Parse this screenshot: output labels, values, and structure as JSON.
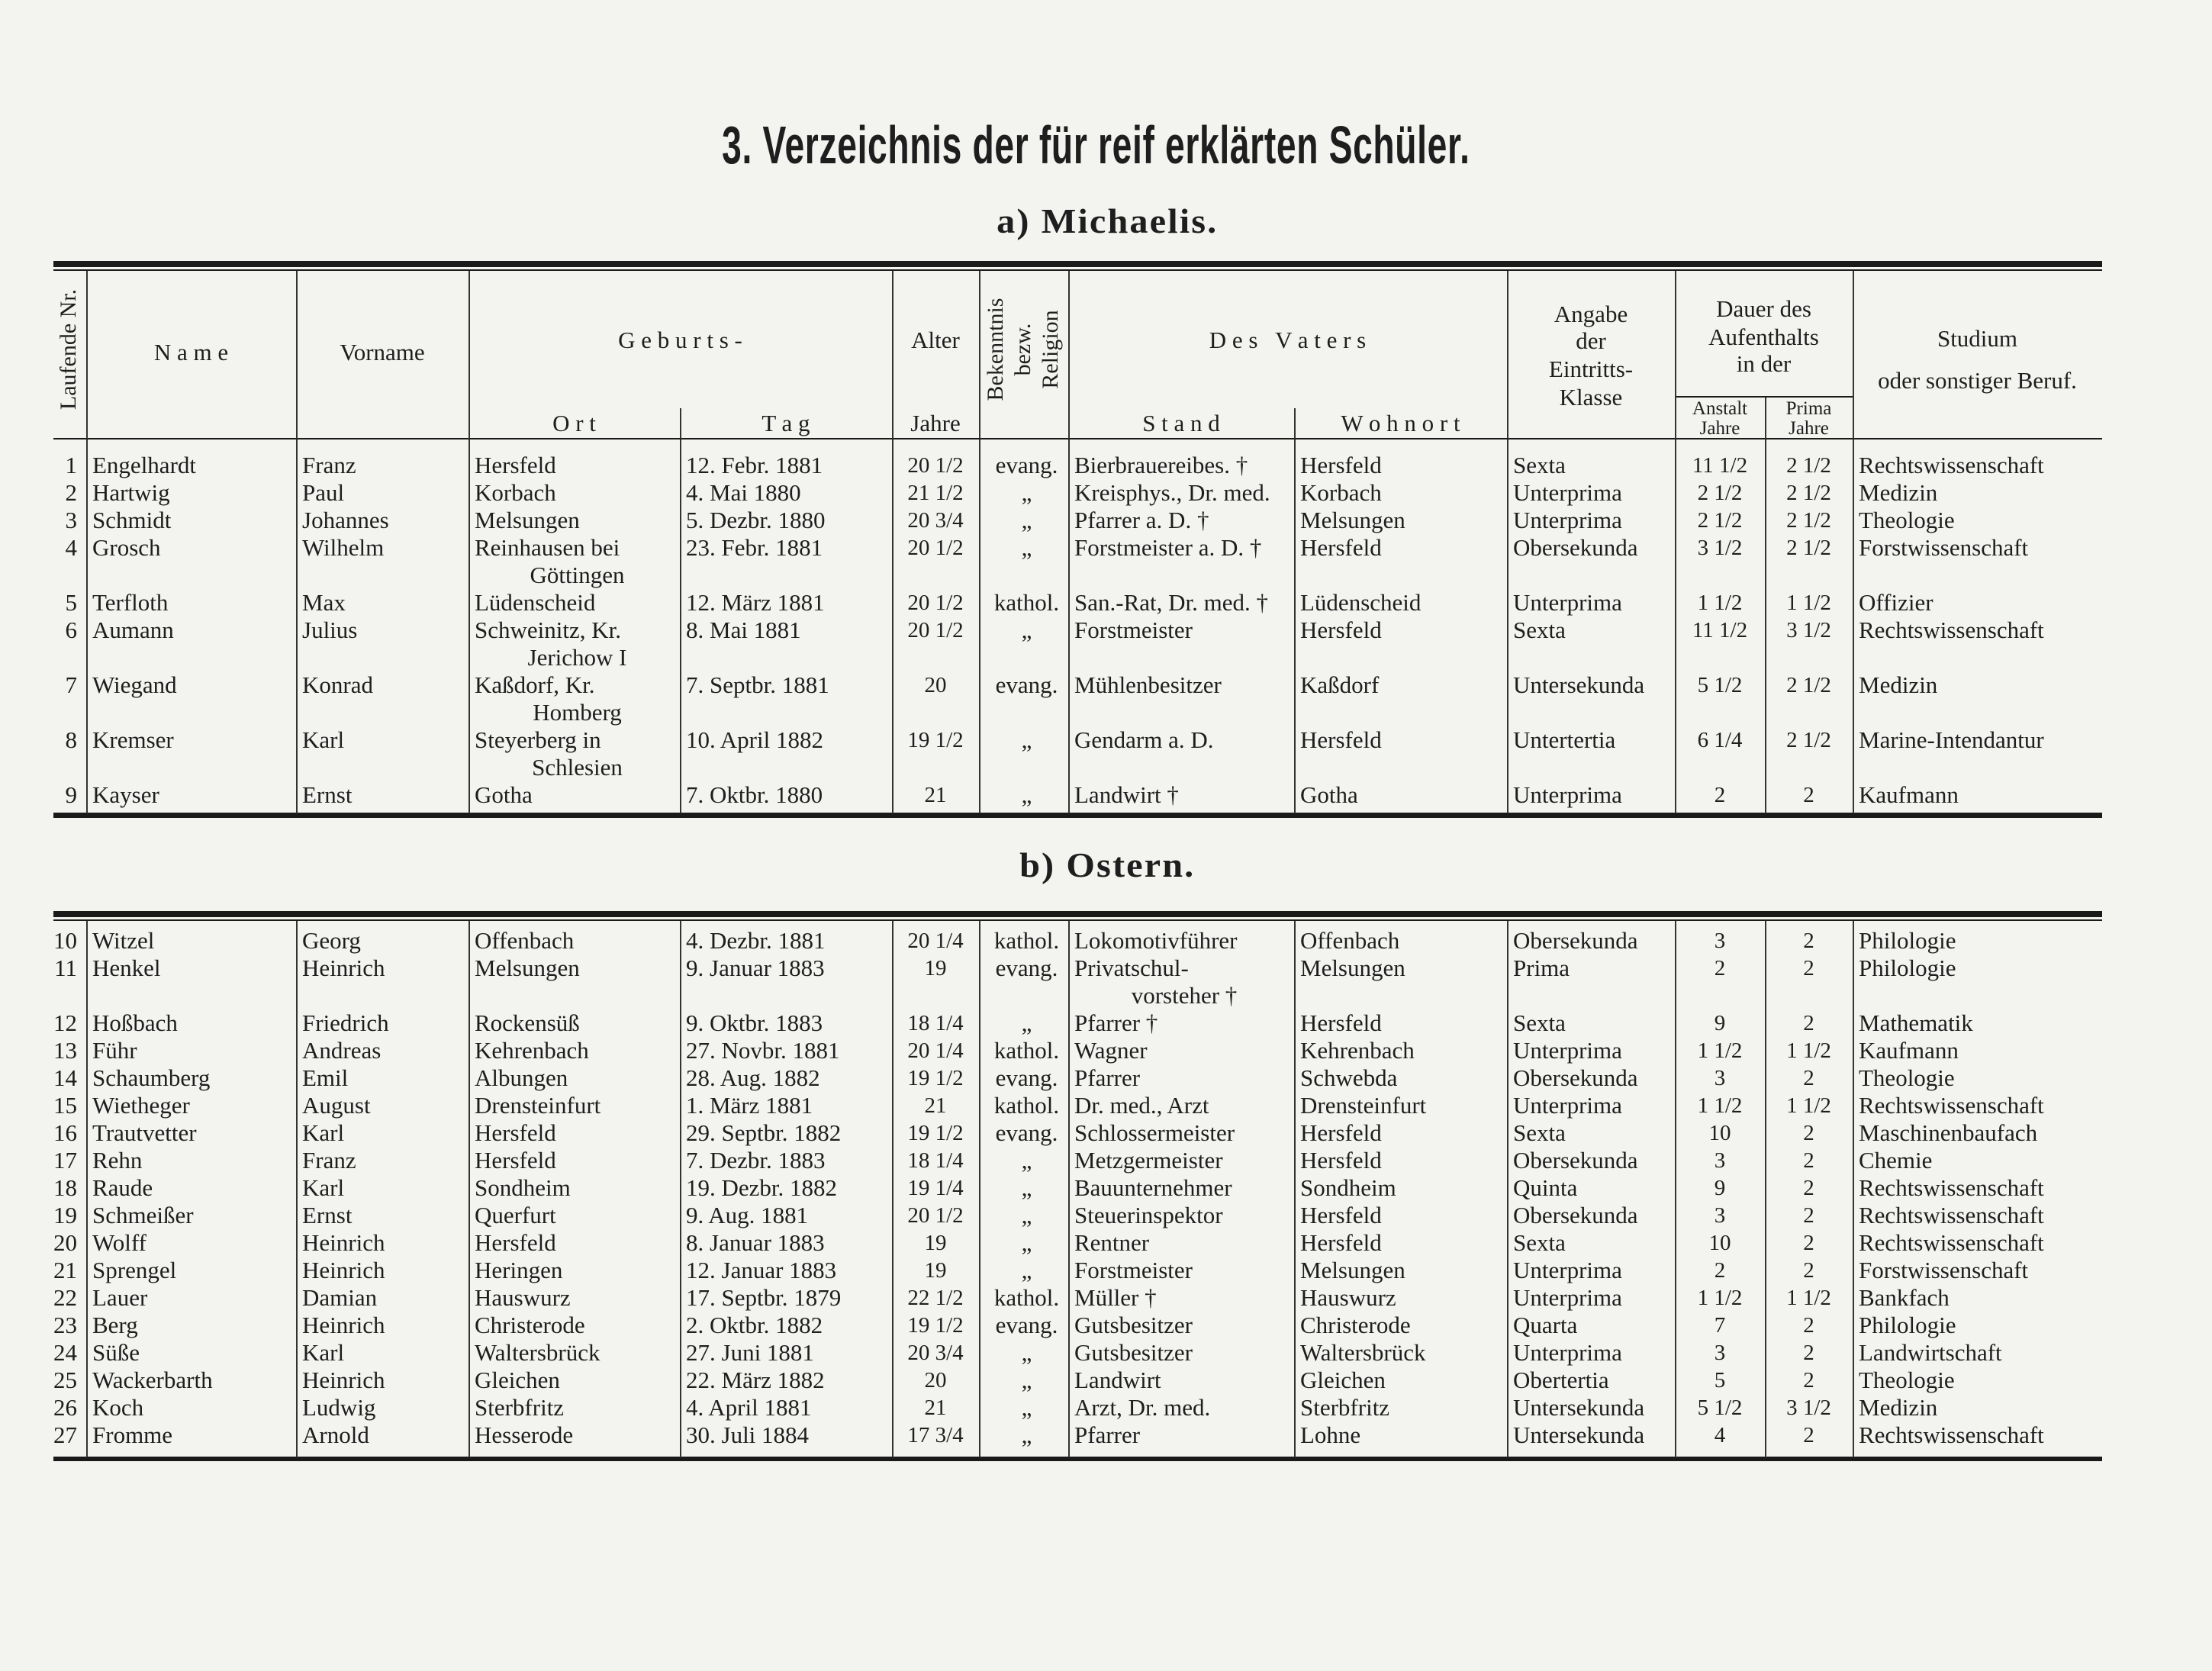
{
  "title": "3. Verzeichnis der für reif erklärten Schüler.",
  "header": {
    "nr": "Laufende Nr.",
    "name": "N a m e",
    "vorname": "Vorname",
    "geburts": "G e b u r t s -",
    "ort": "O r t",
    "tag": "T a g",
    "alter": "Alter",
    "alter_unit": "Jahre",
    "religion": [
      "Bekenntnis",
      "bezw.",
      "Religion"
    ],
    "vater": "D e s   V a t e r s",
    "stand": "S t a n d",
    "wohnort": "W o h n o r t",
    "klasse": [
      "Angabe",
      "der",
      "Eintritts-",
      "Klasse"
    ],
    "dauer": [
      "Dauer des",
      "Aufenthalts",
      "in der"
    ],
    "anstalt": [
      "Anstalt",
      "Jahre"
    ],
    "prima": [
      "Prima",
      "Jahre"
    ],
    "studium": [
      "Studium",
      "oder sonstiger Beruf."
    ]
  },
  "sections": [
    {
      "heading": "a) Michaelis.",
      "rows": [
        {
          "nr": "1",
          "name": "Engelhardt",
          "vorname": "Franz",
          "ort": [
            "Hersfeld"
          ],
          "tag": "12. Febr. 1881",
          "alter": "20 1/2",
          "religion": "evang.",
          "stand": [
            "Bierbrauereibes. †"
          ],
          "wohnort": "Hersfeld",
          "klasse": "Sexta",
          "anstalt": "11 1/2",
          "prima": "2 1/2",
          "studium": "Rechtswissenschaft"
        },
        {
          "nr": "2",
          "name": "Hartwig",
          "vorname": "Paul",
          "ort": [
            "Korbach"
          ],
          "tag": "4. Mai 1880",
          "alter": "21 1/2",
          "religion": "„",
          "stand": [
            "Kreisphys., Dr. med."
          ],
          "wohnort": "Korbach",
          "klasse": "Unterprima",
          "anstalt": "2 1/2",
          "prima": "2 1/2",
          "studium": "Medizin"
        },
        {
          "nr": "3",
          "name": "Schmidt",
          "vorname": "Johannes",
          "ort": [
            "Melsungen"
          ],
          "tag": "5. Dezbr. 1880",
          "alter": "20 3/4",
          "religion": "„",
          "stand": [
            "Pfarrer a. D. †"
          ],
          "wohnort": "Melsungen",
          "klasse": "Unterprima",
          "anstalt": "2 1/2",
          "prima": "2 1/2",
          "studium": "Theologie"
        },
        {
          "nr": "4",
          "name": "Grosch",
          "vorname": "Wilhelm",
          "ort": [
            "Reinhausen bei",
            "Göttingen"
          ],
          "tag": "23. Febr. 1881",
          "alter": "20 1/2",
          "religion": "„",
          "stand": [
            "Forstmeister a. D. †"
          ],
          "wohnort": "Hersfeld",
          "klasse": "Obersekunda",
          "anstalt": "3 1/2",
          "prima": "2 1/2",
          "studium": "Forstwissenschaft"
        },
        {
          "nr": "5",
          "name": "Terfloth",
          "vorname": "Max",
          "ort": [
            "Lüdenscheid"
          ],
          "tag": "12. März 1881",
          "alter": "20 1/2",
          "religion": "kathol.",
          "stand": [
            "San.-Rat, Dr. med. †"
          ],
          "wohnort": "Lüdenscheid",
          "klasse": "Unterprima",
          "anstalt": "1 1/2",
          "prima": "1 1/2",
          "studium": "Offizier"
        },
        {
          "nr": "6",
          "name": "Aumann",
          "vorname": "Julius",
          "ort": [
            "Schweinitz, Kr.",
            "Jerichow I"
          ],
          "tag": "8. Mai 1881",
          "alter": "20 1/2",
          "religion": "„",
          "stand": [
            "Forstmeister"
          ],
          "wohnort": "Hersfeld",
          "klasse": "Sexta",
          "anstalt": "11 1/2",
          "prima": "3 1/2",
          "studium": "Rechtswissenschaft"
        },
        {
          "nr": "7",
          "name": "Wiegand",
          "vorname": "Konrad",
          "ort": [
            "Kaßdorf, Kr.",
            "Homberg"
          ],
          "tag": "7. Septbr. 1881",
          "alter": "20",
          "religion": "evang.",
          "stand": [
            "Mühlenbesitzer"
          ],
          "wohnort": "Kaßdorf",
          "klasse": "Untersekunda",
          "anstalt": "5 1/2",
          "prima": "2 1/2",
          "studium": "Medizin"
        },
        {
          "nr": "8",
          "name": "Kremser",
          "vorname": "Karl",
          "ort": [
            "Steyerberg in",
            "Schlesien"
          ],
          "tag": "10. April 1882",
          "alter": "19 1/2",
          "religion": "„",
          "stand": [
            "Gendarm a. D."
          ],
          "wohnort": "Hersfeld",
          "klasse": "Untertertia",
          "anstalt": "6 1/4",
          "prima": "2 1/2",
          "studium": "Marine-Intendantur"
        },
        {
          "nr": "9",
          "name": "Kayser",
          "vorname": "Ernst",
          "ort": [
            "Gotha"
          ],
          "tag": "7. Oktbr. 1880",
          "alter": "21",
          "religion": "„",
          "stand": [
            "Landwirt †"
          ],
          "wohnort": "Gotha",
          "klasse": "Unterprima",
          "anstalt": "2",
          "prima": "2",
          "studium": "Kaufmann"
        }
      ]
    },
    {
      "heading": "b) Ostern.",
      "rows": [
        {
          "nr": "10",
          "name": "Witzel",
          "vorname": "Georg",
          "ort": [
            "Offenbach"
          ],
          "tag": "4. Dezbr. 1881",
          "alter": "20 1/4",
          "religion": "kathol.",
          "stand": [
            "Lokomotivführer"
          ],
          "wohnort": "Offenbach",
          "klasse": "Obersekunda",
          "anstalt": "3",
          "prima": "2",
          "studium": "Philologie"
        },
        {
          "nr": "11",
          "name": "Henkel",
          "vorname": "Heinrich",
          "ort": [
            "Melsungen"
          ],
          "tag": "9. Januar 1883",
          "alter": "19",
          "religion": "evang.",
          "stand": [
            "Privatschul-",
            "vorsteher †"
          ],
          "wohnort": "Melsungen",
          "klasse": "Prima",
          "anstalt": "2",
          "prima": "2",
          "studium": "Philologie"
        },
        {
          "nr": "12",
          "name": "Hoßbach",
          "vorname": "Friedrich",
          "ort": [
            "Rockensüß"
          ],
          "tag": "9. Oktbr. 1883",
          "alter": "18 1/4",
          "religion": "„",
          "stand": [
            "Pfarrer †"
          ],
          "wohnort": "Hersfeld",
          "klasse": "Sexta",
          "anstalt": "9",
          "prima": "2",
          "studium": "Mathematik"
        },
        {
          "nr": "13",
          "name": "Führ",
          "vorname": "Andreas",
          "ort": [
            "Kehrenbach"
          ],
          "tag": "27. Novbr. 1881",
          "alter": "20 1/4",
          "religion": "kathol.",
          "stand": [
            "Wagner"
          ],
          "wohnort": "Kehrenbach",
          "klasse": "Unterprima",
          "anstalt": "1 1/2",
          "prima": "1 1/2",
          "studium": "Kaufmann"
        },
        {
          "nr": "14",
          "name": "Schaumberg",
          "vorname": "Emil",
          "ort": [
            "Albungen"
          ],
          "tag": "28. Aug. 1882",
          "alter": "19 1/2",
          "religion": "evang.",
          "stand": [
            "Pfarrer"
          ],
          "wohnort": "Schwebda",
          "klasse": "Obersekunda",
          "anstalt": "3",
          "prima": "2",
          "studium": "Theologie"
        },
        {
          "nr": "15",
          "name": "Wietheger",
          "vorname": "August",
          "ort": [
            "Drensteinfurt"
          ],
          "tag": "1. März 1881",
          "alter": "21",
          "religion": "kathol.",
          "stand": [
            "Dr. med., Arzt"
          ],
          "wohnort": "Drensteinfurt",
          "klasse": "Unterprima",
          "anstalt": "1 1/2",
          "prima": "1 1/2",
          "studium": "Rechtswissenschaft"
        },
        {
          "nr": "16",
          "name": "Trautvetter",
          "vorname": "Karl",
          "ort": [
            "Hersfeld"
          ],
          "tag": "29. Septbr. 1882",
          "alter": "19 1/2",
          "religion": "evang.",
          "stand": [
            "Schlossermeister"
          ],
          "wohnort": "Hersfeld",
          "klasse": "Sexta",
          "anstalt": "10",
          "prima": "2",
          "studium": "Maschinenbaufach"
        },
        {
          "nr": "17",
          "name": "Rehn",
          "vorname": "Franz",
          "ort": [
            "Hersfeld"
          ],
          "tag": "7. Dezbr. 1883",
          "alter": "18 1/4",
          "religion": "„",
          "stand": [
            "Metzgermeister"
          ],
          "wohnort": "Hersfeld",
          "klasse": "Obersekunda",
          "anstalt": "3",
          "prima": "2",
          "studium": "Chemie"
        },
        {
          "nr": "18",
          "name": "Raude",
          "vorname": "Karl",
          "ort": [
            "Sondheim"
          ],
          "tag": "19. Dezbr. 1882",
          "alter": "19 1/4",
          "religion": "„",
          "stand": [
            "Bauunternehmer"
          ],
          "wohnort": "Sondheim",
          "klasse": "Quinta",
          "anstalt": "9",
          "prima": "2",
          "studium": "Rechtswissenschaft"
        },
        {
          "nr": "19",
          "name": "Schmeißer",
          "vorname": "Ernst",
          "ort": [
            "Querfurt"
          ],
          "tag": "9. Aug. 1881",
          "alter": "20 1/2",
          "religion": "„",
          "stand": [
            "Steuerinspektor"
          ],
          "wohnort": "Hersfeld",
          "klasse": "Obersekunda",
          "anstalt": "3",
          "prima": "2",
          "studium": "Rechtswissenschaft"
        },
        {
          "nr": "20",
          "name": "Wolff",
          "vorname": "Heinrich",
          "ort": [
            "Hersfeld"
          ],
          "tag": "8. Januar 1883",
          "alter": "19",
          "religion": "„",
          "stand": [
            "Rentner"
          ],
          "wohnort": "Hersfeld",
          "klasse": "Sexta",
          "anstalt": "10",
          "prima": "2",
          "studium": "Rechtswissenschaft"
        },
        {
          "nr": "21",
          "name": "Sprengel",
          "vorname": "Heinrich",
          "ort": [
            "Heringen"
          ],
          "tag": "12. Januar 1883",
          "alter": "19",
          "religion": "„",
          "stand": [
            "Forstmeister"
          ],
          "wohnort": "Melsungen",
          "klasse": "Unterprima",
          "anstalt": "2",
          "prima": "2",
          "studium": "Forstwissenschaft"
        },
        {
          "nr": "22",
          "name": "Lauer",
          "vorname": "Damian",
          "ort": [
            "Hauswurz"
          ],
          "tag": "17. Septbr. 1879",
          "alter": "22 1/2",
          "religion": "kathol.",
          "stand": [
            "Müller †"
          ],
          "wohnort": "Hauswurz",
          "klasse": "Unterprima",
          "anstalt": "1 1/2",
          "prima": "1 1/2",
          "studium": "Bankfach"
        },
        {
          "nr": "23",
          "name": "Berg",
          "vorname": "Heinrich",
          "ort": [
            "Christerode"
          ],
          "tag": "2. Oktbr. 1882",
          "alter": "19 1/2",
          "religion": "evang.",
          "stand": [
            "Gutsbesitzer"
          ],
          "wohnort": "Christerode",
          "klasse": "Quarta",
          "anstalt": "7",
          "prima": "2",
          "studium": "Philologie"
        },
        {
          "nr": "24",
          "name": "Süße",
          "vorname": "Karl",
          "ort": [
            "Waltersbrück"
          ],
          "tag": "27. Juni 1881",
          "alter": "20 3/4",
          "religion": "„",
          "stand": [
            "Gutsbesitzer"
          ],
          "wohnort": "Waltersbrück",
          "klasse": "Unterprima",
          "anstalt": "3",
          "prima": "2",
          "studium": "Landwirtschaft"
        },
        {
          "nr": "25",
          "name": "Wackerbarth",
          "vorname": "Heinrich",
          "ort": [
            "Gleichen"
          ],
          "tag": "22. März 1882",
          "alter": "20",
          "religion": "„",
          "stand": [
            "Landwirt"
          ],
          "wohnort": "Gleichen",
          "klasse": "Obertertia",
          "anstalt": "5",
          "prima": "2",
          "studium": "Theologie"
        },
        {
          "nr": "26",
          "name": "Koch",
          "vorname": "Ludwig",
          "ort": [
            "Sterbfritz"
          ],
          "tag": "4. April 1881",
          "alter": "21",
          "religion": "„",
          "stand": [
            "Arzt, Dr. med."
          ],
          "wohnort": "Sterbfritz",
          "klasse": "Untersekunda",
          "anstalt": "5 1/2",
          "prima": "3 1/2",
          "studium": "Medizin"
        },
        {
          "nr": "27",
          "name": "Fromme",
          "vorname": "Arnold",
          "ort": [
            "Hesserode"
          ],
          "tag": "30. Juli 1884",
          "alter": "17 3/4",
          "religion": "„",
          "stand": [
            "Pfarrer"
          ],
          "wohnort": "Lohne",
          "klasse": "Untersekunda",
          "anstalt": "4",
          "prima": "2",
          "studium": "Rechtswissenschaft"
        }
      ]
    }
  ]
}
